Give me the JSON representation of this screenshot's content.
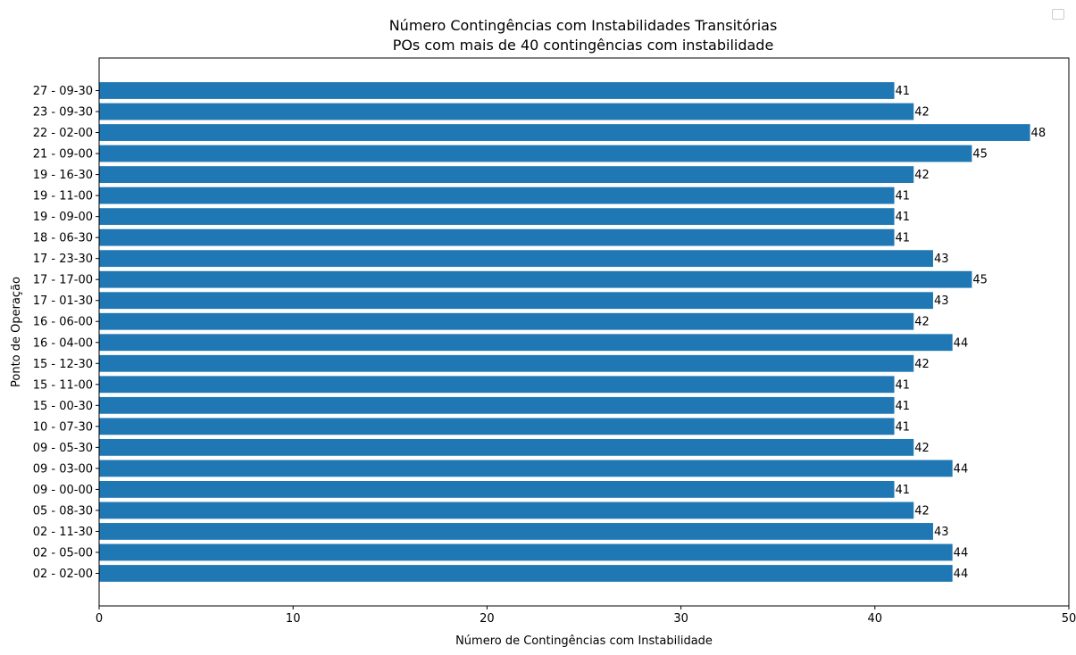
{
  "chart_data": {
    "type": "bar",
    "orientation": "horizontal",
    "title": "Número Contingências com Instabilidades Transitórias",
    "subtitle": "POs com mais de 40 contingências com instabilidade",
    "xlabel": "Número de Contingências com Instabilidade",
    "ylabel": "Ponto de Operação",
    "xlim": [
      0,
      50
    ],
    "xticks": [
      0,
      10,
      20,
      30,
      40,
      50
    ],
    "grid": false,
    "legend": "top-right (empty)",
    "bar_color": "#1f77b4",
    "categories": [
      "02 - 02-00",
      "02 - 05-00",
      "02 - 11-30",
      "05 - 08-30",
      "09 - 00-00",
      "09 - 03-00",
      "09 - 05-30",
      "10 - 07-30",
      "15 - 00-30",
      "15 - 11-00",
      "15 - 12-30",
      "16 - 04-00",
      "16 - 06-00",
      "17 - 01-30",
      "17 - 17-00",
      "17 - 23-30",
      "18 - 06-30",
      "19 - 09-00",
      "19 - 11-00",
      "19 - 16-30",
      "21 - 09-00",
      "22 - 02-00",
      "23 - 09-30",
      "27 - 09-30"
    ],
    "values": [
      44,
      44,
      43,
      42,
      41,
      44,
      42,
      41,
      41,
      41,
      42,
      44,
      42,
      43,
      45,
      43,
      41,
      41,
      41,
      42,
      45,
      48,
      42,
      41
    ]
  }
}
